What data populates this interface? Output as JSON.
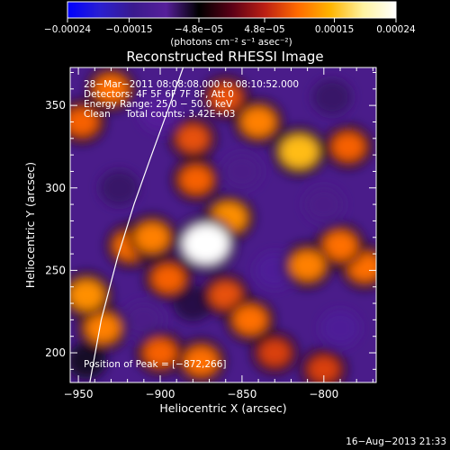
{
  "chart_data": {
    "type": "heatmap",
    "title": "Reconstructed RHESSI Image",
    "xlabel": "Heliocentric X (arcsec)",
    "ylabel": "Heliocentric Y (arcsec)",
    "xlim": [
      -955,
      -768
    ],
    "ylim": [
      182,
      373
    ],
    "x_ticks": [
      -950,
      -900,
      -850,
      -800
    ],
    "x_tick_labels": [
      "−950",
      "−900",
      "−850",
      "−800"
    ],
    "y_ticks": [
      200,
      250,
      300,
      350
    ],
    "y_tick_labels": [
      "200",
      "250",
      "300",
      "350"
    ],
    "colorbar": {
      "colormap": [
        "#0000ff",
        "#2a1fd0",
        "#3a1a8e",
        "#561f9a",
        "#000000",
        "#5a0016",
        "#bb1e14",
        "#ff6a00",
        "#ffb400",
        "#fff3a0",
        "#ffffff"
      ],
      "min": -0.00024,
      "max": 0.00024,
      "ticks": [
        -0.00024,
        -0.00015,
        -4.8e-05,
        4.8e-05,
        0.00015,
        0.00024
      ],
      "tick_labels": [
        "−0.00024",
        "−0.00015",
        "−4.8e−05",
        "4.8e−05",
        "0.00015",
        "0.00024"
      ],
      "units": "(photons cm⁻² s⁻¹ asec⁻²)"
    },
    "annotations": [
      "28−Mar−2011 08:08:08.000 to 08:10:52.000",
      "Detectors: 4F 5F 6F 7F 8F, Att 0",
      "Energy Range: 25.0 − 50.0 keV",
      "Clean     Total counts: 3.42E+03"
    ],
    "peak_label": "Position of Peak = [−872,266]",
    "peak": {
      "x": -872,
      "y": 266
    },
    "limb_curve": {
      "x": [
        -943,
        -936,
        -926,
        -916,
        -906,
        -895,
        -886
      ],
      "y": [
        182,
        220,
        258,
        290,
        318,
        348,
        373
      ]
    },
    "sources": [
      {
        "x": -872,
        "y": 266,
        "value": 0.00024
      },
      {
        "x": -905,
        "y": 270,
        "value": 0.00011
      },
      {
        "x": -895,
        "y": 245,
        "value": 9e-05
      },
      {
        "x": -858,
        "y": 282,
        "value": 0.00012
      },
      {
        "x": -815,
        "y": 322,
        "value": 0.00015
      },
      {
        "x": -840,
        "y": 340,
        "value": 0.00011
      },
      {
        "x": -785,
        "y": 325,
        "value": 9e-05
      },
      {
        "x": -878,
        "y": 305,
        "value": 9e-05
      },
      {
        "x": -945,
        "y": 235,
        "value": 0.00012
      },
      {
        "x": -935,
        "y": 215,
        "value": 0.00011
      },
      {
        "x": -918,
        "y": 265,
        "value": 0.0001
      },
      {
        "x": -930,
        "y": 360,
        "value": 0.0001
      },
      {
        "x": -948,
        "y": 340,
        "value": 9e-05
      },
      {
        "x": -880,
        "y": 330,
        "value": 8e-05
      },
      {
        "x": -810,
        "y": 253,
        "value": 0.00011
      },
      {
        "x": -775,
        "y": 252,
        "value": 0.0001
      },
      {
        "x": -790,
        "y": 265,
        "value": 0.0001
      },
      {
        "x": -845,
        "y": 220,
        "value": 0.0001
      },
      {
        "x": -860,
        "y": 235,
        "value": 8e-05
      },
      {
        "x": -830,
        "y": 200,
        "value": 7e-05
      },
      {
        "x": -875,
        "y": 195,
        "value": 0.0001
      },
      {
        "x": -900,
        "y": 200,
        "value": 9e-05
      },
      {
        "x": -860,
        "y": 355,
        "value": 8e-05
      },
      {
        "x": -800,
        "y": 190,
        "value": 7e-05
      },
      {
        "x": -910,
        "y": 220,
        "value": -9e-05
      },
      {
        "x": -830,
        "y": 250,
        "value": -0.00011
      },
      {
        "x": -800,
        "y": 290,
        "value": -9e-05
      },
      {
        "x": -900,
        "y": 345,
        "value": -0.0001
      },
      {
        "x": -795,
        "y": 355,
        "value": -8e-05
      },
      {
        "x": -850,
        "y": 310,
        "value": -9e-05
      },
      {
        "x": -925,
        "y": 300,
        "value": -8e-05
      },
      {
        "x": -790,
        "y": 215,
        "value": -0.00011
      },
      {
        "x": -880,
        "y": 230,
        "value": -7e-05
      },
      {
        "x": -945,
        "y": 195,
        "value": -6e-05
      }
    ]
  },
  "footer": {
    "timestamp": "16−Aug−2013 21:33"
  }
}
